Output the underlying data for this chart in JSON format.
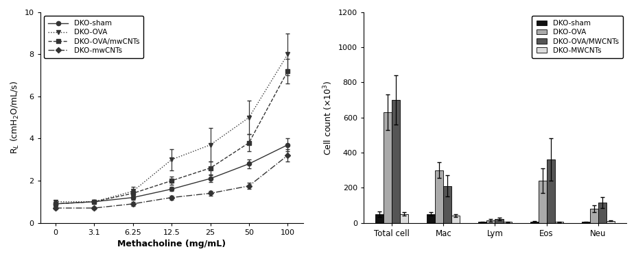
{
  "line_x_labels": [
    "0",
    "3.1",
    "6.25",
    "12.5",
    "25",
    "50",
    "100"
  ],
  "line_series": {
    "DKO-sham": {
      "y": [
        0.9,
        1.0,
        1.2,
        1.6,
        2.1,
        2.8,
        3.7
      ],
      "yerr": [
        0.05,
        0.05,
        0.1,
        0.1,
        0.15,
        0.2,
        0.3
      ],
      "linestyle": "-",
      "marker": "o",
      "color": "#333333"
    },
    "DKO-OVA": {
      "y": [
        1.0,
        1.0,
        1.5,
        3.0,
        3.7,
        5.0,
        8.0
      ],
      "yerr": [
        0.05,
        0.1,
        0.2,
        0.5,
        0.8,
        0.8,
        1.0
      ],
      "linestyle": ":",
      "marker": "v",
      "color": "#333333"
    },
    "DKO-OVA/mwCNTs": {
      "y": [
        0.9,
        1.0,
        1.4,
        2.0,
        2.6,
        3.8,
        7.2
      ],
      "yerr": [
        0.05,
        0.05,
        0.15,
        0.2,
        0.3,
        0.4,
        0.6
      ],
      "linestyle": "--",
      "marker": "s",
      "color": "#333333"
    },
    "DKO-mwCNTs": {
      "y": [
        0.7,
        0.7,
        0.9,
        1.2,
        1.4,
        1.75,
        3.2
      ],
      "yerr": [
        0.05,
        0.05,
        0.1,
        0.1,
        0.1,
        0.15,
        0.3
      ],
      "linestyle": "-.",
      "marker": "D",
      "color": "#333333"
    }
  },
  "line_ylabel": "R$_{L}$ (cmH$_{2}$O/mL/s)",
  "line_xlabel": "Methacholine (mg/mL)",
  "line_ylim": [
    0,
    10
  ],
  "line_yticks": [
    0,
    2,
    4,
    6,
    8,
    10
  ],
  "bar_categories": [
    "Total cell",
    "Mac",
    "Lym",
    "Eos",
    "Neu"
  ],
  "bar_groups": [
    "DKO-sham",
    "DKO-OVA",
    "DKO-OVA/MWCNTs",
    "DKO-MWCNTs"
  ],
  "bar_colors": [
    "#111111",
    "#aaaaaa",
    "#555555",
    "#dddddd"
  ],
  "bar_data": {
    "Total cell": [
      50,
      630,
      700,
      50
    ],
    "Mac": [
      50,
      300,
      210,
      40
    ],
    "Lym": [
      5,
      15,
      20,
      5
    ],
    "Eos": [
      5,
      240,
      360,
      5
    ],
    "Neu": [
      5,
      80,
      115,
      10
    ]
  },
  "bar_errors": {
    "Total cell": [
      15,
      100,
      140,
      10
    ],
    "Mac": [
      10,
      45,
      60,
      8
    ],
    "Lym": [
      2,
      8,
      8,
      2
    ],
    "Eos": [
      5,
      70,
      120,
      2
    ],
    "Neu": [
      2,
      20,
      30,
      2
    ]
  },
  "bar_ylabel": "Cell count (×10$^{3}$)",
  "bar_ylim": [
    0,
    1200
  ],
  "bar_yticks": [
    0,
    200,
    400,
    600,
    800,
    1000,
    1200
  ]
}
